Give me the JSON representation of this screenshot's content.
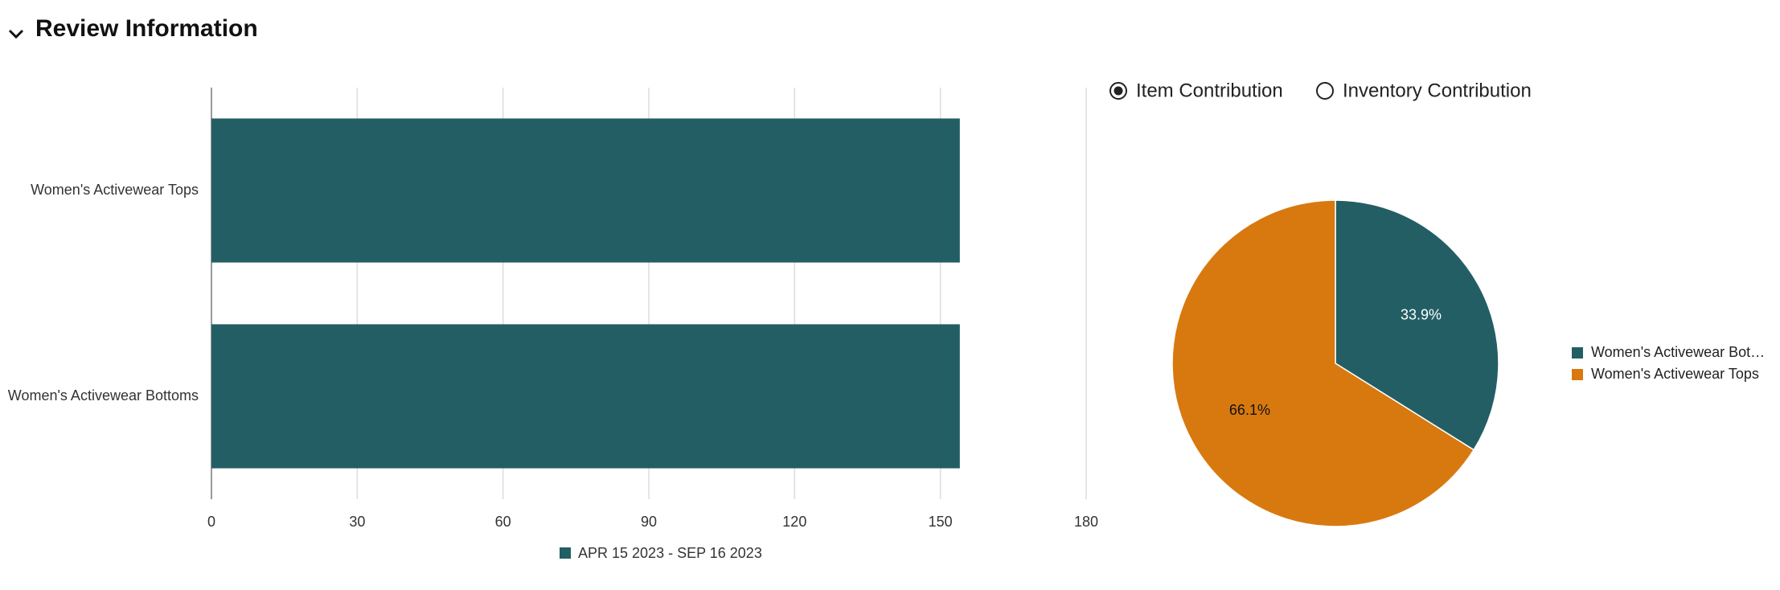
{
  "header": {
    "title": "Review Information"
  },
  "radios": {
    "options": [
      "Item Contribution",
      "Inventory Contribution"
    ],
    "selected": [
      true,
      false
    ]
  },
  "chart_data": [
    {
      "type": "bar",
      "orientation": "horizontal",
      "categories": [
        "Women's Activewear Tops",
        "Women's Activewear Bottoms"
      ],
      "series": [
        {
          "name": "APR 15 2023 - SEP 16 2023",
          "color": "#235e65",
          "values": [
            154,
            154
          ]
        }
      ],
      "xlim": [
        0,
        180
      ],
      "xticks": [
        0,
        30,
        60,
        90,
        120,
        150,
        180
      ],
      "grid": true,
      "legend": "bottom"
    },
    {
      "type": "pie",
      "categories": [
        "Women's Activewear Bot…",
        "Women's Activewear Tops"
      ],
      "values": [
        33.9,
        66.1
      ],
      "value_labels": [
        "33.9%",
        "66.1%"
      ],
      "colors": [
        "#235e65",
        "#d8790f"
      ],
      "legend": "right"
    }
  ]
}
